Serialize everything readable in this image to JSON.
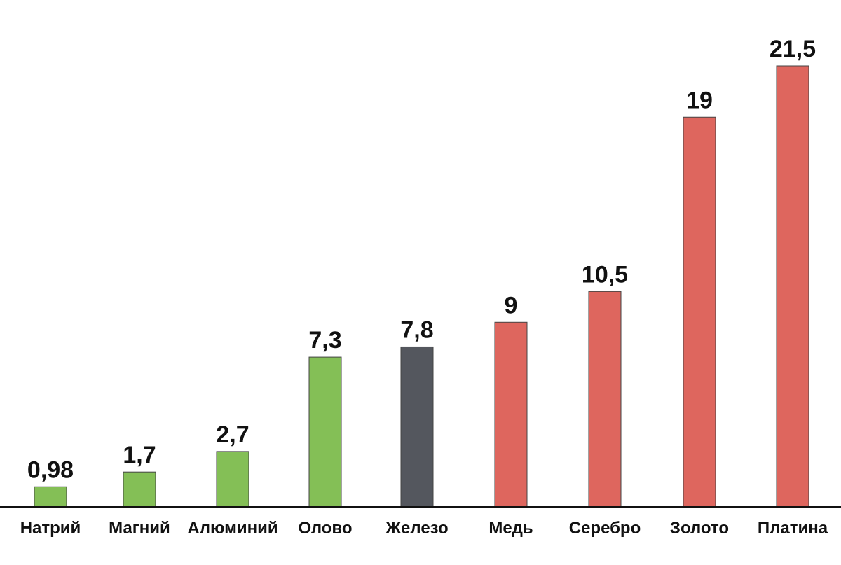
{
  "chart_data": {
    "type": "bar",
    "title": "",
    "xlabel": "",
    "ylabel": "",
    "ylim": [
      0,
      21.5
    ],
    "grid": false,
    "legend": "none",
    "categories": [
      "Натрий",
      "Магний",
      "Алюминий",
      "Олово",
      "Железо",
      "Медь",
      "Серебро",
      "Золото",
      "Платина"
    ],
    "values": [
      0.98,
      1.7,
      2.7,
      7.3,
      7.8,
      9,
      10.5,
      19,
      21.5
    ],
    "value_labels": [
      "0,98",
      "1,7",
      "2,7",
      "7,3",
      "7,8",
      "9",
      "10,5",
      "19",
      "21,5"
    ],
    "bar_colors": [
      "#84bf56",
      "#84bf56",
      "#84bf56",
      "#84bf56",
      "#54575e",
      "#de665e",
      "#de665e",
      "#de665e",
      "#de665e"
    ],
    "baseline_color": "#111111",
    "bar_stroke_color": "#444444"
  }
}
